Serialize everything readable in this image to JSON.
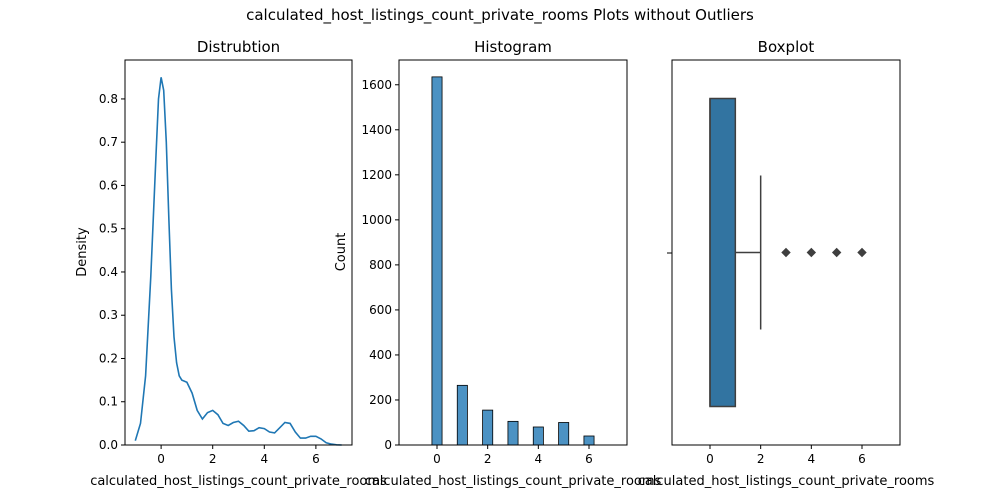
{
  "suptitle": "calculated_host_listings_count_private_rooms Plots without Outliers",
  "colors": {
    "kde_line": "#1f77b4",
    "hist_bar": "#4c92c3",
    "hist_edge": "#000000",
    "box_fill": "#3274a1",
    "box_edge": "#3f3f3f",
    "outlier": "#3f3f3f"
  },
  "chart_data": [
    {
      "type": "line",
      "title": "Distrubtion",
      "xlabel": "calculated_host_listings_count_private_rooms",
      "ylabel": "Density",
      "xlim": [
        -1.4,
        7.4
      ],
      "ylim": [
        0,
        0.89
      ],
      "xticks": [
        0,
        2,
        4,
        6
      ],
      "yticks": [
        0.0,
        0.1,
        0.2,
        0.3,
        0.4,
        0.5,
        0.6,
        0.7,
        0.8
      ],
      "series": [
        {
          "x": [
            -1.0,
            -0.8,
            -0.6,
            -0.4,
            -0.2,
            -0.1,
            0.0,
            0.1,
            0.2,
            0.3,
            0.4,
            0.5,
            0.6,
            0.7,
            0.8,
            1.0,
            1.2,
            1.4,
            1.6,
            1.8,
            2.0,
            2.2,
            2.4,
            2.6,
            2.8,
            3.0,
            3.2,
            3.4,
            3.6,
            3.8,
            4.0,
            4.2,
            4.4,
            4.6,
            4.8,
            5.0,
            5.2,
            5.4,
            5.6,
            5.8,
            6.0,
            6.2,
            6.4,
            6.6,
            6.8,
            7.0
          ],
          "y": [
            0.01,
            0.05,
            0.16,
            0.39,
            0.67,
            0.8,
            0.85,
            0.82,
            0.7,
            0.52,
            0.36,
            0.25,
            0.19,
            0.16,
            0.15,
            0.145,
            0.12,
            0.08,
            0.06,
            0.075,
            0.08,
            0.07,
            0.05,
            0.045,
            0.052,
            0.055,
            0.045,
            0.032,
            0.033,
            0.04,
            0.038,
            0.03,
            0.028,
            0.04,
            0.052,
            0.05,
            0.03,
            0.016,
            0.016,
            0.02,
            0.02,
            0.014,
            0.005,
            0.002,
            0.0005,
            0.0
          ]
        }
      ]
    },
    {
      "type": "bar",
      "title": "Histogram",
      "xlabel": "calculated_host_listings_count_private_rooms",
      "ylabel": "Count",
      "xlim": [
        -1.5,
        7.5
      ],
      "ylim": [
        0,
        1710
      ],
      "xticks": [
        0,
        2,
        4,
        6
      ],
      "yticks": [
        0,
        200,
        400,
        600,
        800,
        1000,
        1200,
        1400,
        1600
      ],
      "bin_width": 0.4,
      "categories": [
        0,
        1,
        2,
        3,
        4,
        5,
        6
      ],
      "values": [
        1635,
        265,
        155,
        105,
        80,
        100,
        40
      ]
    },
    {
      "type": "boxplot",
      "title": "Boxplot",
      "xlabel": "calculated_host_listings_count_private_rooms",
      "ylabel": "",
      "xlim": [
        -1.5,
        7.5
      ],
      "xticks": [
        0,
        2,
        4,
        6
      ],
      "q1": 0,
      "median": 0,
      "q3": 1,
      "whisker_low": 0,
      "whisker_high": 2,
      "outliers": [
        3,
        4,
        5,
        6
      ]
    }
  ]
}
